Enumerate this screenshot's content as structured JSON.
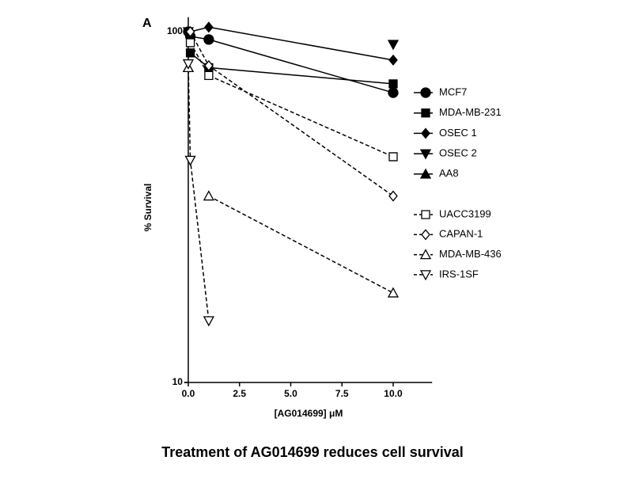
{
  "chart_data": {
    "type": "line",
    "panel_label": "A",
    "y_label": "% Survival",
    "x_label": "[AG014699] μM",
    "caption": "Treatment of AG014699 reduces cell survival",
    "x": [
      0,
      0.1,
      1,
      10
    ],
    "xlim": [
      -0.2,
      11.9
    ],
    "xticks": [
      {
        "value": 0,
        "label": "0.0"
      },
      2.5,
      {
        "value": 5,
        "label": "5.0"
      },
      7.5,
      {
        "value": 10,
        "label": "10.0"
      }
    ],
    "ylim": [
      10,
      110
    ],
    "yscale": "log",
    "yticks": [
      10,
      100
    ],
    "series": [
      {
        "name": "MCF7",
        "color": "#000000",
        "marker": "circle",
        "filled": true,
        "dashed": false,
        "values": [
          100,
          97,
          95,
          67
        ]
      },
      {
        "name": "MDA-MB-231",
        "color": "#000000",
        "marker": "square",
        "filled": true,
        "dashed": false,
        "values": [
          null,
          87,
          79,
          71
        ]
      },
      {
        "name": "OSEC 1",
        "color": "#000000",
        "marker": "diamond",
        "filled": true,
        "dashed": false,
        "values": [
          null,
          100,
          103,
          83
        ]
      },
      {
        "name": "OSEC 2",
        "color": "#000000",
        "marker": "triangle-down",
        "filled": true,
        "dashed": false,
        "values": [
          100,
          null,
          null,
          92
        ]
      },
      {
        "name": "AA8",
        "color": "#000000",
        "marker": "triangle-up",
        "filled": true,
        "dashed": false,
        "values": [
          79,
          null,
          null,
          null
        ]
      },
      {
        "name": "UACC3199",
        "color": "#000000",
        "marker": "square",
        "filled": false,
        "dashed": true,
        "values": [
          null,
          93,
          75,
          44
        ]
      },
      {
        "name": "CAPAN-1",
        "color": "#000000",
        "marker": "diamond",
        "filled": false,
        "dashed": true,
        "values": [
          null,
          100,
          80,
          34
        ]
      },
      {
        "name": "MDA-MB-436",
        "color": "#000000",
        "marker": "triangle-up",
        "filled": false,
        "dashed": true,
        "values": [
          79,
          null,
          34,
          18
        ]
      },
      {
        "name": "IRS-1SF",
        "color": "#000000",
        "marker": "triangle-down",
        "filled": false,
        "dashed": true,
        "values": [
          81,
          43,
          15,
          null
        ]
      }
    ]
  }
}
